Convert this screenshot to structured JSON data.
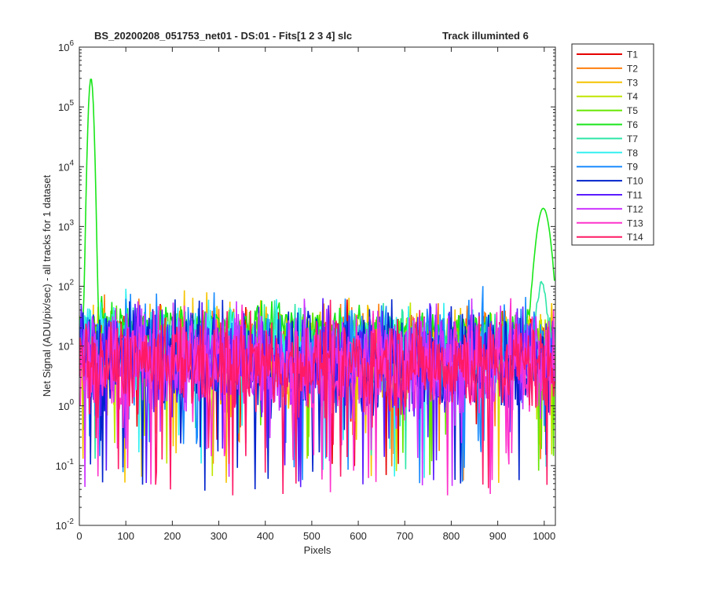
{
  "chart_data": {
    "type": "line",
    "title_left": "BS_20200208_051753_net01 - DS:01 - Fits[1  2  3  4]   slc",
    "title_right": "Track illuminted 6",
    "xlabel": "Pixels",
    "ylabel": "Net Signal (ADU/pix/sec) - all tracks for 1 dataset",
    "xlim": [
      0,
      1024
    ],
    "ylim": [
      0.01,
      1000000
    ],
    "yscale": "log",
    "grid": false,
    "legend_position": "outside-right",
    "x_ticks": [
      0,
      100,
      200,
      300,
      400,
      500,
      600,
      700,
      800,
      900,
      1000
    ],
    "y_ticks": [
      {
        "base": "10",
        "exp": "-2",
        "value": 0.01
      },
      {
        "base": "10",
        "exp": "-1",
        "value": 0.1
      },
      {
        "base": "10",
        "exp": "0",
        "value": 1
      },
      {
        "base": "10",
        "exp": "1",
        "value": 10
      },
      {
        "base": "10",
        "exp": "2",
        "value": 100
      },
      {
        "base": "10",
        "exp": "3",
        "value": 1000
      },
      {
        "base": "10",
        "exp": "4",
        "value": 10000
      },
      {
        "base": "10",
        "exp": "5",
        "value": 100000
      },
      {
        "base": "10",
        "exp": "6",
        "value": 1000000
      }
    ],
    "series": [
      {
        "name": "T1",
        "color": "#e60000",
        "level": 9,
        "noise": 0.7
      },
      {
        "name": "T2",
        "color": "#ff7f0e",
        "level": 8,
        "noise": 0.8
      },
      {
        "name": "T3",
        "color": "#f5c400",
        "level": 7,
        "noise": 0.9
      },
      {
        "name": "T4",
        "color": "#bfe600",
        "level": 10,
        "noise": 0.6
      },
      {
        "name": "T5",
        "color": "#66e600",
        "level": 14,
        "noise": 0.5
      },
      {
        "name": "T6",
        "color": "#19e619",
        "level": 25,
        "noise": 0.35,
        "peaks": [
          {
            "x": 25,
            "y": 300000,
            "width": 5
          },
          {
            "x": 998,
            "y": 2000,
            "width": 14
          }
        ]
      },
      {
        "name": "T7",
        "color": "#2ee6a8",
        "level": 12,
        "noise": 0.7,
        "peaks": [
          {
            "x": 995,
            "y": 100,
            "width": 10
          }
        ]
      },
      {
        "name": "T8",
        "color": "#33f0f0",
        "level": 11,
        "noise": 0.8
      },
      {
        "name": "T9",
        "color": "#1a8cff",
        "level": 8,
        "noise": 0.9
      },
      {
        "name": "T10",
        "color": "#0022cc",
        "level": 6,
        "noise": 1.0
      },
      {
        "name": "T11",
        "color": "#5b1cff",
        "level": 6,
        "noise": 1.0
      },
      {
        "name": "T12",
        "color": "#cc33ff",
        "level": 6,
        "noise": 1.0
      },
      {
        "name": "T13",
        "color": "#ff33cc",
        "level": 5,
        "noise": 0.9
      },
      {
        "name": "T14",
        "color": "#ff1a66",
        "level": 5,
        "noise": 0.9
      }
    ]
  }
}
